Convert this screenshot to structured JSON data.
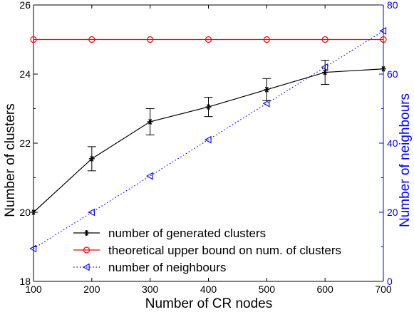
{
  "chart_data": {
    "type": "line",
    "title": "",
    "xlabel": "Number of CR nodes",
    "ylabel_left": "Number of clusters",
    "ylabel_right": "Number of neighbours",
    "x": [
      100,
      200,
      300,
      400,
      500,
      600,
      700
    ],
    "xlim": [
      100,
      700
    ],
    "x_ticks": [
      "100",
      "200",
      "300",
      "400",
      "500",
      "600",
      "700"
    ],
    "ylim_left": [
      18,
      26
    ],
    "y_left_ticks": [
      "18",
      "20",
      "22",
      "24",
      "26"
    ],
    "ylim_right": [
      0,
      80
    ],
    "y_right_ticks": [
      "0",
      "20",
      "40",
      "60",
      "80"
    ],
    "grid": false,
    "legend_position": "bottom-right",
    "series": [
      {
        "name": "number of generated clusters",
        "axis": "left",
        "color": "#000000",
        "marker": "star",
        "line_style": "solid",
        "values": [
          20.0,
          21.55,
          22.62,
          23.05,
          23.55,
          24.05,
          24.15
        ],
        "error": [
          0.0,
          0.35,
          0.38,
          0.28,
          0.32,
          0.35,
          0.0
        ]
      },
      {
        "name": "theoretical upper bound on num. of clusters",
        "axis": "left",
        "color": "#ff0000",
        "marker": "circle",
        "line_style": "solid",
        "values": [
          25,
          25,
          25,
          25,
          25,
          25,
          25
        ]
      },
      {
        "name": "number of neighbours",
        "axis": "right",
        "color": "#0000ff",
        "marker": "triangle-left",
        "line_style": "dotted",
        "values": [
          9.5,
          20.0,
          30.5,
          41.0,
          51.5,
          62.0,
          72.5
        ]
      }
    ]
  },
  "colors": {
    "axis_left": "#000000",
    "axis_right": "#0000ff"
  }
}
